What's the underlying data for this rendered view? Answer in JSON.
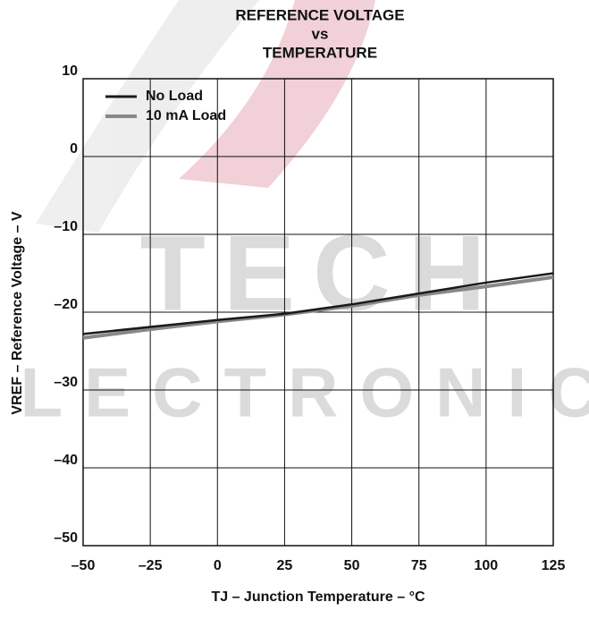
{
  "chart_data": {
    "type": "line",
    "title": [
      "REFERENCE VOLTAGE",
      "vs",
      "TEMPERATURE"
    ],
    "x_label": "TJ  –  Junction Temperature – °C",
    "y_label": "VREF – Reference Voltage – V",
    "watermark": [
      "TECH",
      "ELECTRONIC"
    ],
    "x": [
      -50,
      -25,
      0,
      25,
      50,
      75,
      100,
      125
    ],
    "series": [
      {
        "name": "No Load",
        "color": "#1a1a1a",
        "values": [
          -22.8,
          -21.9,
          -21.0,
          -20.2,
          -19.0,
          -17.6,
          -16.2,
          -15.0
        ]
      },
      {
        "name": "10 mA Load",
        "color": "#888888",
        "values": [
          -23.3,
          -22.2,
          -21.2,
          -20.3,
          -19.2,
          -17.8,
          -16.7,
          -15.5
        ]
      }
    ],
    "xlim": [
      -50,
      125
    ],
    "xticks": [
      {
        "value": -50,
        "label": "–50"
      },
      {
        "value": -25,
        "label": "–25"
      },
      0,
      25,
      50,
      75,
      100,
      125
    ],
    "ylim": [
      -50,
      10
    ],
    "yticks": [
      {
        "value": -50,
        "label": "–50"
      },
      {
        "value": -40,
        "label": "–40"
      },
      {
        "value": -30,
        "label": "–30"
      },
      {
        "value": -20,
        "label": "–20"
      },
      {
        "value": -10,
        "label": "–10"
      },
      0,
      10
    ],
    "grid": true,
    "legend": "upper-left"
  }
}
